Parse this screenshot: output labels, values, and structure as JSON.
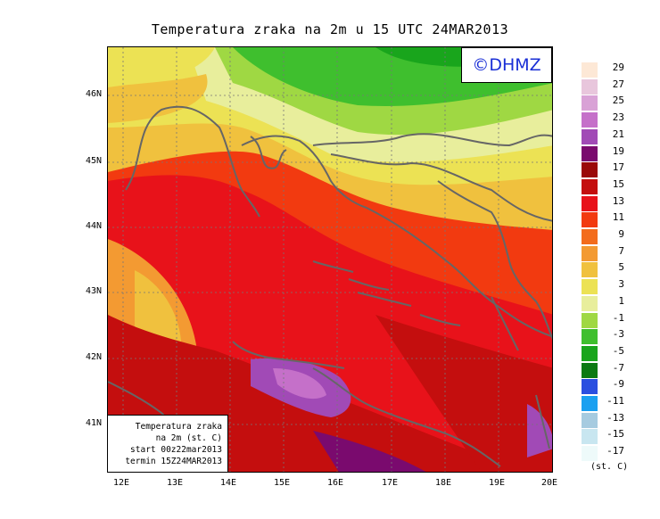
{
  "title": "Temperatura zraka na 2m u 15 UTC 24MAR2013",
  "copyright": "©DHMZ",
  "info": {
    "line1": "Temperatura zraka",
    "line2": "na 2m (st. C)",
    "line3": "start 00z22mar2013",
    "line4": "termin 15Z24MAR2013"
  },
  "axes": {
    "lat_ticks": [
      "46N",
      "45N",
      "44N",
      "43N",
      "42N",
      "41N"
    ],
    "lon_ticks": [
      "12E",
      "13E",
      "14E",
      "15E",
      "16E",
      "17E",
      "18E",
      "19E",
      "20E"
    ]
  },
  "legend": {
    "unit": "(st. C)",
    "labels": [
      "29",
      "27",
      "25",
      "23",
      "21",
      "19",
      "17",
      "15",
      "13",
      "11",
      "9",
      "7",
      "5",
      "3",
      "1",
      "-1",
      "-3",
      "-5",
      "-7",
      "-9",
      "-11",
      "-13",
      "-15",
      "-17"
    ],
    "colors": [
      "#fde8d6",
      "#e8c6dc",
      "#d9a2d6",
      "#c570c9",
      "#a14ab6",
      "#7a0a6e",
      "#9a0a0a",
      "#c40e0e",
      "#e8121a",
      "#f23a10",
      "#f36c1c",
      "#f39a32",
      "#f0c13e",
      "#ece254",
      "#e8ee9c",
      "#9fd843",
      "#3fbf2e",
      "#19a51c",
      "#0b7a12",
      "#2a4fe0",
      "#1aa0f0",
      "#a6cbe0",
      "#c8e6f0",
      "#eefafa"
    ]
  }
}
